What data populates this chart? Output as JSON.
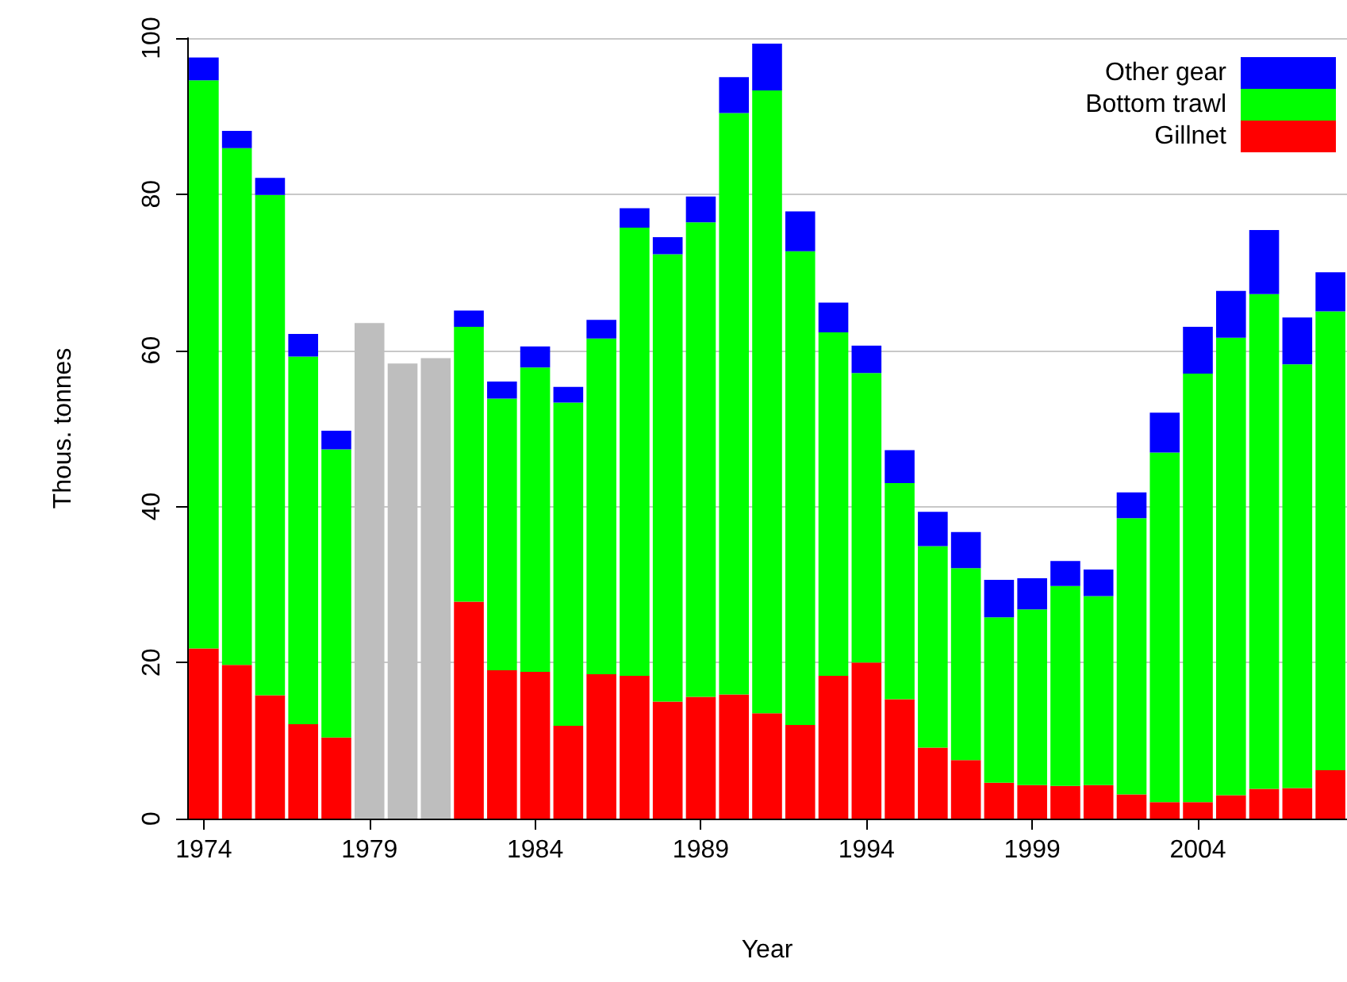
{
  "chart_data": {
    "type": "bar",
    "stacked": true,
    "xlabel": "Year",
    "ylabel": "Thous. tonnes",
    "categories": [
      "1974",
      null,
      null,
      null,
      null,
      "1979",
      null,
      null,
      null,
      null,
      "1984",
      null,
      null,
      null,
      null,
      "1989",
      null,
      null,
      null,
      null,
      "1994",
      null,
      null,
      null,
      null,
      "1999",
      null,
      null,
      null,
      null,
      "2004",
      null,
      null,
      null,
      null
    ],
    "series": [
      {
        "name": "Gillnet",
        "color": "#ff0000",
        "values": [
          21.8,
          19.7,
          15.8,
          12.1,
          10.4,
          null,
          null,
          null,
          27.8,
          19.0,
          18.8,
          11.9,
          18.5,
          18.3,
          15.0,
          15.6,
          15.9,
          13.5,
          12.0,
          18.3,
          20.0,
          15.3,
          9.1,
          7.5,
          4.6,
          4.3,
          4.2,
          4.3,
          3.1,
          2.1,
          2.1,
          3.0,
          3.8,
          3.9,
          6.2
        ]
      },
      {
        "name": "Bottom trawl",
        "color": "#00ff00",
        "values": [
          72.8,
          66.2,
          64.1,
          47.1,
          36.9,
          null,
          null,
          null,
          35.2,
          34.8,
          39.0,
          41.4,
          43.0,
          57.4,
          57.3,
          60.8,
          74.5,
          79.8,
          60.7,
          44.0,
          37.1,
          27.7,
          25.8,
          24.6,
          21.2,
          22.5,
          25.6,
          24.2,
          35.4,
          44.8,
          54.9,
          58.6,
          63.4,
          54.3,
          58.8
        ]
      },
      {
        "name": "Other gear",
        "color": "#0000ff",
        "values": [
          2.9,
          2.2,
          2.2,
          2.9,
          2.4,
          null,
          null,
          null,
          2.1,
          2.2,
          2.7,
          2.0,
          2.4,
          2.5,
          2.2,
          3.3,
          4.6,
          6.0,
          5.1,
          3.8,
          3.5,
          4.2,
          4.4,
          4.6,
          4.8,
          4.0,
          3.2,
          3.4,
          3.3,
          5.1,
          6.0,
          6.0,
          8.2,
          6.0,
          5.0
        ]
      },
      {
        "color": "#bebebe",
        "values": [
          null,
          null,
          null,
          null,
          null,
          63.5,
          58.3,
          59.0,
          null,
          null,
          null,
          null,
          null,
          null,
          null,
          null,
          null,
          null,
          null,
          null,
          null,
          null,
          null,
          null,
          null,
          null,
          null,
          null,
          null,
          null,
          null,
          null,
          null,
          null,
          null
        ]
      }
    ],
    "ylim": [
      0,
      100
    ],
    "yticks": [
      0,
      20,
      40,
      60,
      80,
      100
    ],
    "grid": "y",
    "legend": "top right"
  }
}
